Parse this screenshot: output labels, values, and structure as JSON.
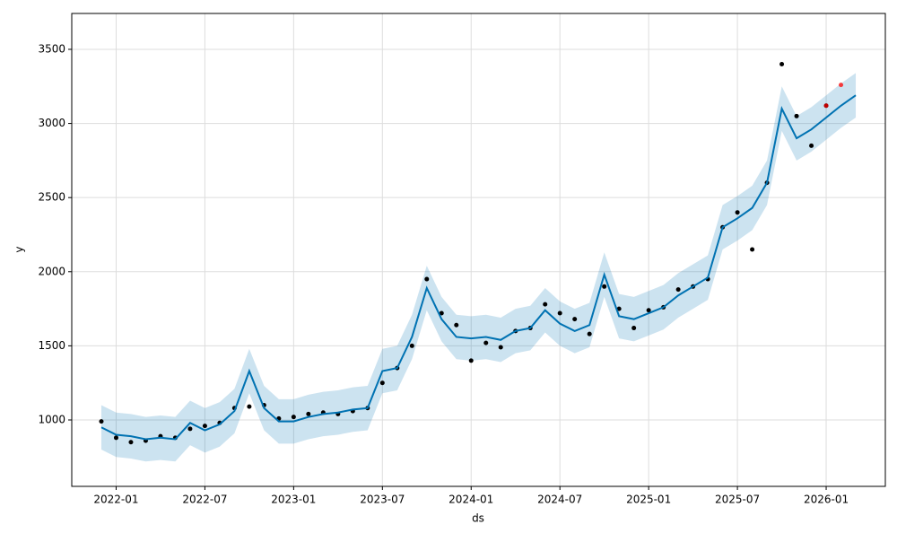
{
  "chart_data": {
    "type": "forecast",
    "xlabel": "ds",
    "ylabel": "y",
    "xlim": [
      "2021-10",
      "2026-05"
    ],
    "xticks": [
      "2022-01",
      "2022-07",
      "2023-01",
      "2023-07",
      "2024-01",
      "2024-07",
      "2025-01",
      "2025-07",
      "2026-01"
    ],
    "ylim": [
      552,
      3742
    ],
    "yticks": [
      1000,
      1500,
      2000,
      2500,
      3000,
      3500
    ],
    "grid": true,
    "forecast": {
      "color": "#0072B2",
      "x": [
        "2021-12",
        "2022-01",
        "2022-02",
        "2022-03",
        "2022-04",
        "2022-05",
        "2022-06",
        "2022-07",
        "2022-08",
        "2022-09",
        "2022-10",
        "2022-11",
        "2022-12",
        "2023-01",
        "2023-02",
        "2023-03",
        "2023-04",
        "2023-05",
        "2023-06",
        "2023-07",
        "2023-08",
        "2023-09",
        "2023-10",
        "2023-11",
        "2023-12",
        "2024-01",
        "2024-02",
        "2024-03",
        "2024-04",
        "2024-05",
        "2024-06",
        "2024-07",
        "2024-08",
        "2024-09",
        "2024-10",
        "2024-11",
        "2024-12",
        "2025-01",
        "2025-02",
        "2025-03",
        "2025-04",
        "2025-05",
        "2025-06",
        "2025-07",
        "2025-08",
        "2025-09",
        "2025-10",
        "2025-11",
        "2025-12",
        "2026-01",
        "2026-02",
        "2026-03"
      ],
      "values": [
        950,
        900,
        890,
        870,
        880,
        870,
        980,
        930,
        970,
        1060,
        1330,
        1080,
        990,
        990,
        1020,
        1040,
        1050,
        1070,
        1080,
        1330,
        1350,
        1560,
        1890,
        1680,
        1560,
        1550,
        1560,
        1540,
        1600,
        1620,
        1740,
        1650,
        1600,
        1640,
        1980,
        1700,
        1680,
        1720,
        1760,
        1840,
        1900,
        1960,
        2300,
        2360,
        2430,
        2600,
        3100,
        2900,
        2960,
        3040,
        3120,
        3190
      ],
      "lower": [
        800,
        750,
        740,
        720,
        730,
        720,
        830,
        780,
        820,
        910,
        1180,
        930,
        840,
        840,
        870,
        890,
        900,
        920,
        930,
        1180,
        1200,
        1410,
        1740,
        1530,
        1410,
        1400,
        1410,
        1390,
        1450,
        1470,
        1590,
        1500,
        1450,
        1490,
        1830,
        1550,
        1530,
        1570,
        1610,
        1690,
        1750,
        1810,
        2150,
        2210,
        2280,
        2450,
        2950,
        2750,
        2810,
        2890,
        2970,
        3040
      ],
      "upper": [
        1100,
        1050,
        1040,
        1020,
        1030,
        1020,
        1130,
        1080,
        1120,
        1210,
        1480,
        1230,
        1140,
        1140,
        1170,
        1190,
        1200,
        1220,
        1230,
        1480,
        1500,
        1710,
        2040,
        1830,
        1710,
        1700,
        1710,
        1690,
        1750,
        1770,
        1890,
        1800,
        1750,
        1790,
        2130,
        1850,
        1830,
        1870,
        1910,
        1990,
        2050,
        2110,
        2450,
        2510,
        2580,
        2750,
        3250,
        3050,
        3110,
        3190,
        3270,
        3340
      ]
    },
    "observed": {
      "color": "#000000",
      "x": [
        "2021-12",
        "2022-01",
        "2022-02",
        "2022-03",
        "2022-04",
        "2022-05",
        "2022-06",
        "2022-07",
        "2022-08",
        "2022-09",
        "2022-10",
        "2022-11",
        "2022-12",
        "2023-01",
        "2023-02",
        "2023-03",
        "2023-04",
        "2023-05",
        "2023-06",
        "2023-07",
        "2023-08",
        "2023-09",
        "2023-10",
        "2023-11",
        "2023-12",
        "2024-01",
        "2024-02",
        "2024-03",
        "2024-04",
        "2024-05",
        "2024-06",
        "2024-07",
        "2024-08",
        "2024-09",
        "2024-10",
        "2024-11",
        "2024-12",
        "2025-01",
        "2025-02",
        "2025-03",
        "2025-04",
        "2025-05",
        "2025-06",
        "2025-07",
        "2025-08",
        "2025-09",
        "2025-10",
        "2025-11",
        "2025-12",
        "2026-01"
      ],
      "values": [
        990,
        880,
        850,
        860,
        890,
        880,
        940,
        960,
        980,
        1080,
        1090,
        1100,
        1010,
        1020,
        1040,
        1050,
        1040,
        1060,
        1080,
        1250,
        1350,
        1500,
        1950,
        1720,
        1640,
        1400,
        1520,
        1490,
        1600,
        1620,
        1780,
        1720,
        1680,
        1580,
        1900,
        1750,
        1620,
        1740,
        1760,
        1880,
        1900,
        1950,
        2300,
        2400,
        2150,
        2600,
        3400,
        3050,
        2850,
        3120
      ]
    },
    "recent": {
      "color": "#ff0000",
      "x": [
        "2026-01",
        "2026-02"
      ],
      "values": [
        3120,
        3260
      ]
    }
  }
}
